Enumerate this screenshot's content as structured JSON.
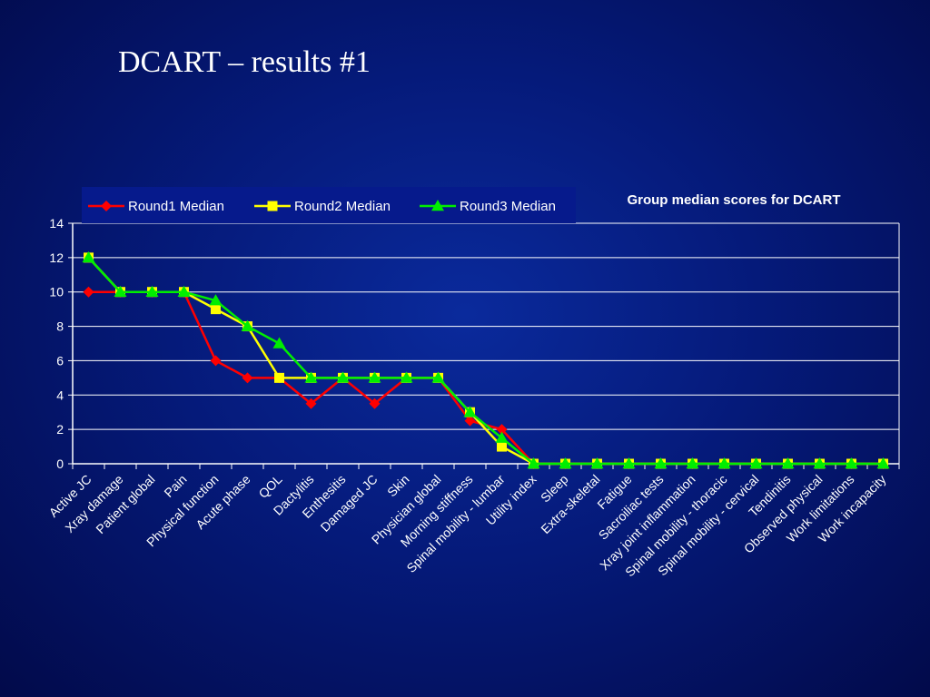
{
  "slide": {
    "title": "DCART – results #1"
  },
  "chart_data": {
    "type": "line",
    "title": "Group median scores for DCART",
    "xlabel": "",
    "ylabel": "",
    "ylim": [
      0,
      14
    ],
    "yticks": [
      0,
      2,
      4,
      6,
      8,
      10,
      12,
      14
    ],
    "grid": "horizontal",
    "legend_position": "top-left",
    "categories": [
      "Active JC",
      "Xray damage",
      "Patient global",
      "Pain",
      "Physical function",
      "Acute phase",
      "QOL",
      "Dactylitis",
      "Enthesitis",
      "Damaged JC",
      "Skin",
      "Physician global",
      "Morning stiffness",
      "Spinal mobility - lumbar",
      "Utility index",
      "Sleep",
      "Extra-skeletal",
      "Fatigue",
      "Sacroiliac tests",
      "Xray joint inflammation",
      "Spinal mobility - thoracic",
      "Spinal mobility - cervical",
      "Tendinitis",
      "Observed physical",
      "Work limitations",
      "Work incapacity"
    ],
    "series": [
      {
        "name": "Round1 Median",
        "color": "#ff0000",
        "marker": "diamond",
        "values": [
          10,
          10,
          10,
          10,
          6,
          5,
          5,
          3.5,
          5,
          3.5,
          5,
          5,
          2.5,
          2,
          0,
          0,
          0,
          0,
          0,
          0,
          0,
          0,
          0,
          0,
          0,
          0
        ]
      },
      {
        "name": "Round2 Median",
        "color": "#ffff00",
        "marker": "square",
        "values": [
          12,
          10,
          10,
          10,
          9,
          8,
          5,
          5,
          5,
          5,
          5,
          5,
          3,
          1,
          0,
          0,
          0,
          0,
          0,
          0,
          0,
          0,
          0,
          0,
          0,
          0
        ]
      },
      {
        "name": "Round3 Median",
        "color": "#00ee00",
        "marker": "triangle",
        "values": [
          12,
          10,
          10,
          10,
          9.5,
          8,
          7,
          5,
          5,
          5,
          5,
          5,
          3,
          1.5,
          0,
          0,
          0,
          0,
          0,
          0,
          0,
          0,
          0,
          0,
          0,
          0
        ]
      }
    ]
  }
}
